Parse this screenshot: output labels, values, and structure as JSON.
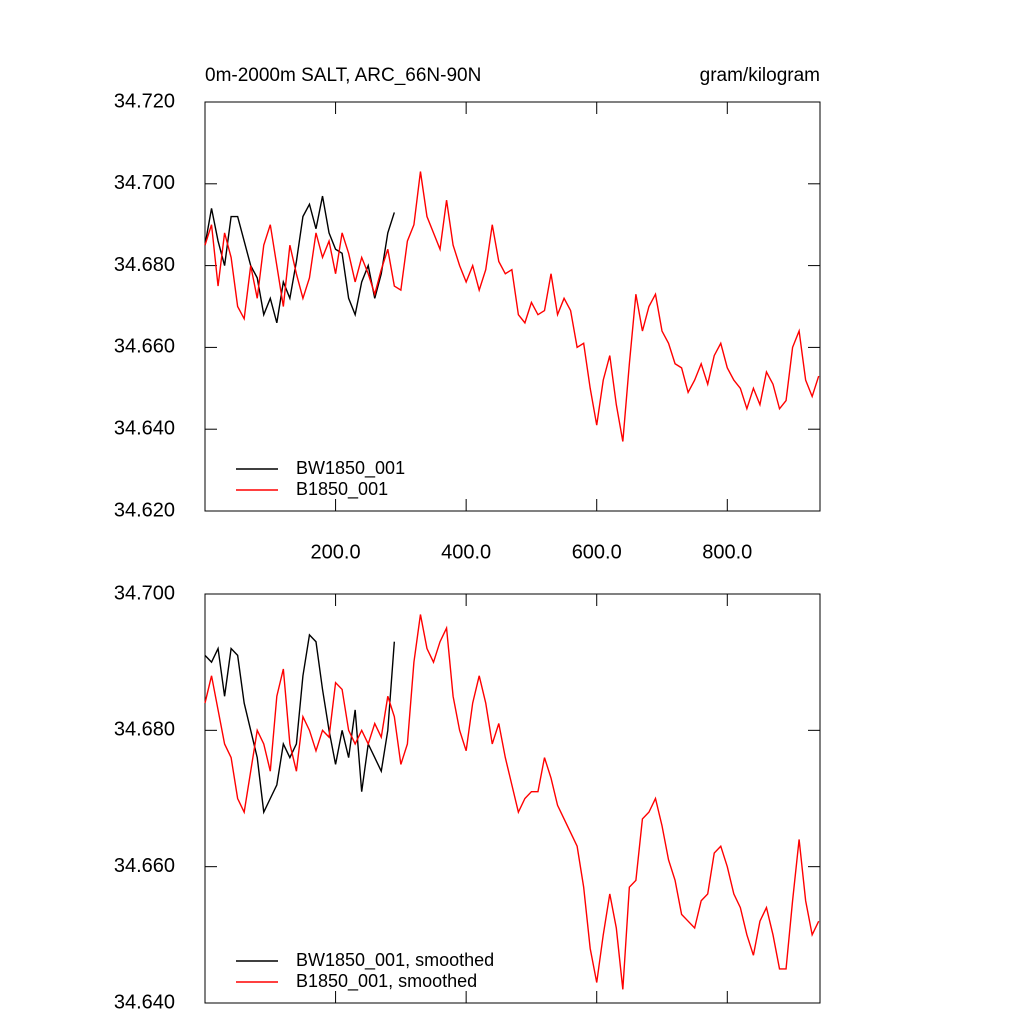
{
  "chart_data": [
    {
      "type": "line",
      "title": "0m-2000m SALT, ARC_66N-90N",
      "units": "gram/kilogram",
      "legend": "lower left",
      "xlim": [
        0,
        942
      ],
      "xticks": [
        {
          "value": 200,
          "label": "200.0"
        },
        {
          "value": 400,
          "label": "400.0"
        },
        {
          "value": 600,
          "label": "600.0"
        },
        {
          "value": 800,
          "label": "800.0"
        }
      ],
      "ylim": [
        34.62,
        34.72
      ],
      "yticks": [
        {
          "value": 34.62,
          "label": "34.620"
        },
        {
          "value": 34.64,
          "label": "34.640"
        },
        {
          "value": 34.66,
          "label": "34.660"
        },
        {
          "value": 34.68,
          "label": "34.680"
        },
        {
          "value": 34.7,
          "label": "34.700"
        },
        {
          "value": 34.72,
          "label": "34.720"
        }
      ],
      "series": [
        {
          "name": "BW1850_001",
          "color": "#000000",
          "x": [
            0,
            10,
            20,
            30,
            40,
            50,
            60,
            70,
            80,
            90,
            100,
            110,
            120,
            130,
            140,
            150,
            160,
            170,
            180,
            190,
            200,
            210,
            220,
            230,
            240,
            250,
            260,
            270,
            280,
            290
          ],
          "values": [
            34.685,
            34.694,
            34.686,
            34.68,
            34.692,
            34.692,
            34.686,
            34.68,
            34.677,
            34.668,
            34.672,
            34.666,
            34.676,
            34.672,
            34.681,
            34.692,
            34.695,
            34.689,
            34.697,
            34.688,
            34.684,
            34.683,
            34.672,
            34.668,
            34.676,
            34.68,
            34.672,
            34.678,
            34.688,
            34.693
          ]
        },
        {
          "name": "B1850_001",
          "color": "#ff0000",
          "x": [
            0,
            10,
            20,
            30,
            40,
            50,
            60,
            70,
            80,
            90,
            100,
            110,
            120,
            130,
            140,
            150,
            160,
            170,
            180,
            190,
            200,
            210,
            220,
            230,
            240,
            250,
            260,
            270,
            280,
            290,
            300,
            310,
            320,
            330,
            340,
            350,
            360,
            370,
            380,
            390,
            400,
            410,
            420,
            430,
            440,
            450,
            460,
            470,
            480,
            490,
            500,
            510,
            520,
            530,
            540,
            550,
            560,
            570,
            580,
            590,
            600,
            610,
            620,
            630,
            640,
            650,
            660,
            670,
            680,
            690,
            700,
            710,
            720,
            730,
            740,
            750,
            760,
            770,
            780,
            790,
            800,
            810,
            820,
            830,
            840,
            850,
            860,
            870,
            880,
            890,
            900,
            910,
            920,
            930,
            940
          ],
          "values": [
            34.685,
            34.69,
            34.675,
            34.688,
            34.682,
            34.67,
            34.667,
            34.68,
            34.672,
            34.685,
            34.69,
            34.68,
            34.67,
            34.685,
            34.678,
            34.672,
            34.677,
            34.688,
            34.682,
            34.686,
            34.678,
            34.688,
            34.683,
            34.676,
            34.682,
            34.678,
            34.673,
            34.679,
            34.684,
            34.675,
            34.674,
            34.686,
            34.69,
            34.703,
            34.692,
            34.688,
            34.684,
            34.696,
            34.685,
            34.68,
            34.676,
            34.68,
            34.674,
            34.679,
            34.69,
            34.681,
            34.678,
            34.679,
            34.668,
            34.666,
            34.671,
            34.668,
            34.669,
            34.678,
            34.668,
            34.672,
            34.669,
            34.66,
            34.661,
            34.65,
            34.641,
            34.652,
            34.658,
            34.646,
            34.637,
            34.656,
            34.673,
            34.664,
            34.67,
            34.673,
            34.664,
            34.661,
            34.656,
            34.655,
            34.649,
            34.652,
            34.656,
            34.651,
            34.658,
            34.661,
            34.655,
            34.652,
            34.65,
            34.645,
            34.65,
            34.646,
            34.654,
            34.651,
            34.645,
            34.647,
            34.66,
            34.664,
            34.652,
            34.648,
            34.653
          ]
        }
      ]
    },
    {
      "type": "line",
      "legend": "lower left",
      "xlim": [
        0,
        942
      ],
      "xticks": [
        200,
        400,
        600,
        800
      ],
      "ylim": [
        34.64,
        34.7
      ],
      "yticks": [
        {
          "value": 34.64,
          "label": "34.640"
        },
        {
          "value": 34.66,
          "label": "34.660"
        },
        {
          "value": 34.68,
          "label": "34.680"
        },
        {
          "value": 34.7,
          "label": "34.700"
        }
      ],
      "series": [
        {
          "name": "BW1850_001, smoothed",
          "color": "#000000",
          "x": [
            0,
            10,
            20,
            30,
            40,
            50,
            60,
            70,
            80,
            90,
            100,
            110,
            120,
            130,
            140,
            150,
            160,
            170,
            180,
            190,
            200,
            210,
            220,
            230,
            240,
            250,
            260,
            270,
            280,
            290
          ],
          "values": [
            34.691,
            34.69,
            34.692,
            34.685,
            34.692,
            34.691,
            34.684,
            34.68,
            34.676,
            34.668,
            34.67,
            34.672,
            34.678,
            34.676,
            34.678,
            34.688,
            34.694,
            34.693,
            34.686,
            34.68,
            34.675,
            34.68,
            34.676,
            34.683,
            34.671,
            34.678,
            34.676,
            34.674,
            34.68,
            34.693
          ]
        },
        {
          "name": "B1850_001, smoothed",
          "color": "#ff0000",
          "x": [
            0,
            10,
            20,
            30,
            40,
            50,
            60,
            70,
            80,
            90,
            100,
            110,
            120,
            130,
            140,
            150,
            160,
            170,
            180,
            190,
            200,
            210,
            220,
            230,
            240,
            250,
            260,
            270,
            280,
            290,
            300,
            310,
            320,
            330,
            340,
            350,
            360,
            370,
            380,
            390,
            400,
            410,
            420,
            430,
            440,
            450,
            460,
            470,
            480,
            490,
            500,
            510,
            520,
            530,
            540,
            550,
            560,
            570,
            580,
            590,
            600,
            610,
            620,
            630,
            640,
            650,
            660,
            670,
            680,
            690,
            700,
            710,
            720,
            730,
            740,
            750,
            760,
            770,
            780,
            790,
            800,
            810,
            820,
            830,
            840,
            850,
            860,
            870,
            880,
            890,
            900,
            910,
            920,
            930,
            940
          ],
          "values": [
            34.684,
            34.688,
            34.683,
            34.678,
            34.676,
            34.67,
            34.668,
            34.674,
            34.68,
            34.678,
            34.674,
            34.685,
            34.689,
            34.678,
            34.674,
            34.682,
            34.68,
            34.677,
            34.68,
            34.679,
            34.687,
            34.686,
            34.68,
            34.678,
            34.68,
            34.678,
            34.681,
            34.679,
            34.685,
            34.682,
            34.675,
            34.678,
            34.69,
            34.697,
            34.692,
            34.69,
            34.693,
            34.695,
            34.685,
            34.68,
            34.677,
            34.684,
            34.688,
            34.684,
            34.678,
            34.681,
            34.676,
            34.672,
            34.668,
            34.67,
            34.671,
            34.671,
            34.676,
            34.673,
            34.669,
            34.667,
            34.665,
            34.663,
            34.657,
            34.648,
            34.643,
            34.65,
            34.656,
            34.651,
            34.642,
            34.657,
            34.658,
            34.667,
            34.668,
            34.67,
            34.666,
            34.661,
            34.658,
            34.653,
            34.652,
            34.651,
            34.655,
            34.656,
            34.662,
            34.663,
            34.66,
            34.656,
            34.654,
            34.65,
            34.647,
            34.652,
            34.654,
            34.65,
            34.645,
            34.645,
            34.655,
            34.664,
            34.655,
            34.65,
            34.652
          ]
        }
      ]
    }
  ]
}
